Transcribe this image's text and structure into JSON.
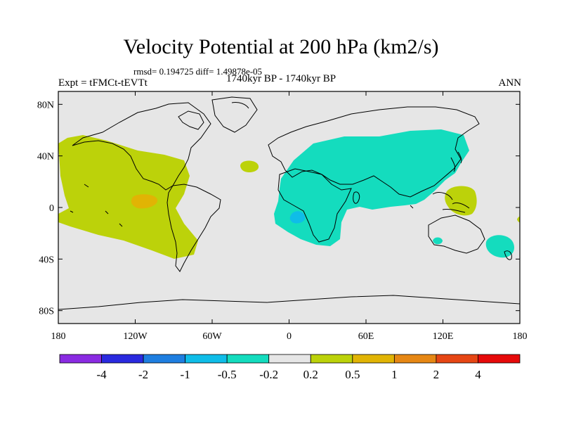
{
  "title": "Velocity Potential at 200 hPa (km2/s)",
  "stats": "rmsd= 0.194725  diff= 1.49878e-05",
  "experiment": "Expt = tFMCt-tEVTt",
  "period": "1740kyr BP - 1740kyr BP",
  "season": "ANN",
  "axes": {
    "lat_labels": [
      {
        "text": "80N",
        "lat": 80
      },
      {
        "text": "40N",
        "lat": 40
      },
      {
        "text": "0",
        "lat": 0
      },
      {
        "text": "40S",
        "lat": -40
      },
      {
        "text": "80S",
        "lat": -80
      }
    ],
    "lon_labels": [
      {
        "text": "180",
        "lon": -180
      },
      {
        "text": "120W",
        "lon": -120
      },
      {
        "text": "60W",
        "lon": -60
      },
      {
        "text": "0",
        "lon": 0
      },
      {
        "text": "60E",
        "lon": 60
      },
      {
        "text": "120E",
        "lon": 120
      },
      {
        "text": "180",
        "lon": 180
      }
    ]
  },
  "colorbar": {
    "colors": [
      "#8a2be2",
      "#2a2adf",
      "#1e7ee0",
      "#0fbde8",
      "#14dcbe",
      "#e6e6e6",
      "#bcd20a",
      "#e1b404",
      "#e68714",
      "#e64614",
      "#e60a0a"
    ],
    "labels": [
      "-4",
      "-2",
      "-1",
      "-0.5",
      "-0.2",
      "0.2",
      "0.5",
      "1",
      "2",
      "4"
    ]
  },
  "map": {
    "background": "#e6e6e6",
    "colors": {
      "positive_weak": "#bcd20a",
      "positive_mid": "#e1b404",
      "negative_weak": "#14dcbe",
      "negative_mid": "#0fbde8",
      "coast": "#000000"
    }
  }
}
